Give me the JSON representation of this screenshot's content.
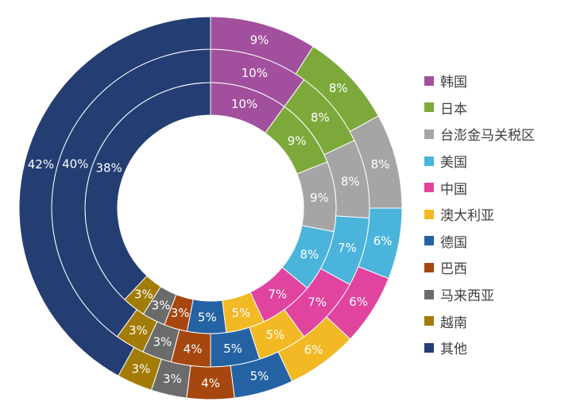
{
  "chart_data": {
    "type": "pie",
    "subtype": "multi-ring donut",
    "categories": [
      "韩国",
      "日本",
      "台澎金马关税区",
      "美国",
      "中国",
      "澳大利亚",
      "德国",
      "巴西",
      "马来西亚",
      "越南",
      "其他"
    ],
    "colors": [
      "#A2509E",
      "#7DA93A",
      "#A5A5A5",
      "#4BB4DA",
      "#E0449E",
      "#F2B925",
      "#2462A3",
      "#A5470F",
      "#6B6B6B",
      "#A27C06",
      "#243E73"
    ],
    "rings": [
      {
        "ring": "inner",
        "values": [
          10,
          9,
          9,
          8,
          7,
          5,
          5,
          3,
          3,
          3,
          38
        ]
      },
      {
        "ring": "middle",
        "values": [
          10,
          8,
          8,
          7,
          7,
          5,
          5,
          4,
          3,
          3,
          40
        ]
      },
      {
        "ring": "outer",
        "values": [
          9,
          8,
          8,
          6,
          6,
          6,
          5,
          4,
          3,
          3,
          42
        ]
      }
    ],
    "value_suffix": "%",
    "legend_position": "right"
  }
}
